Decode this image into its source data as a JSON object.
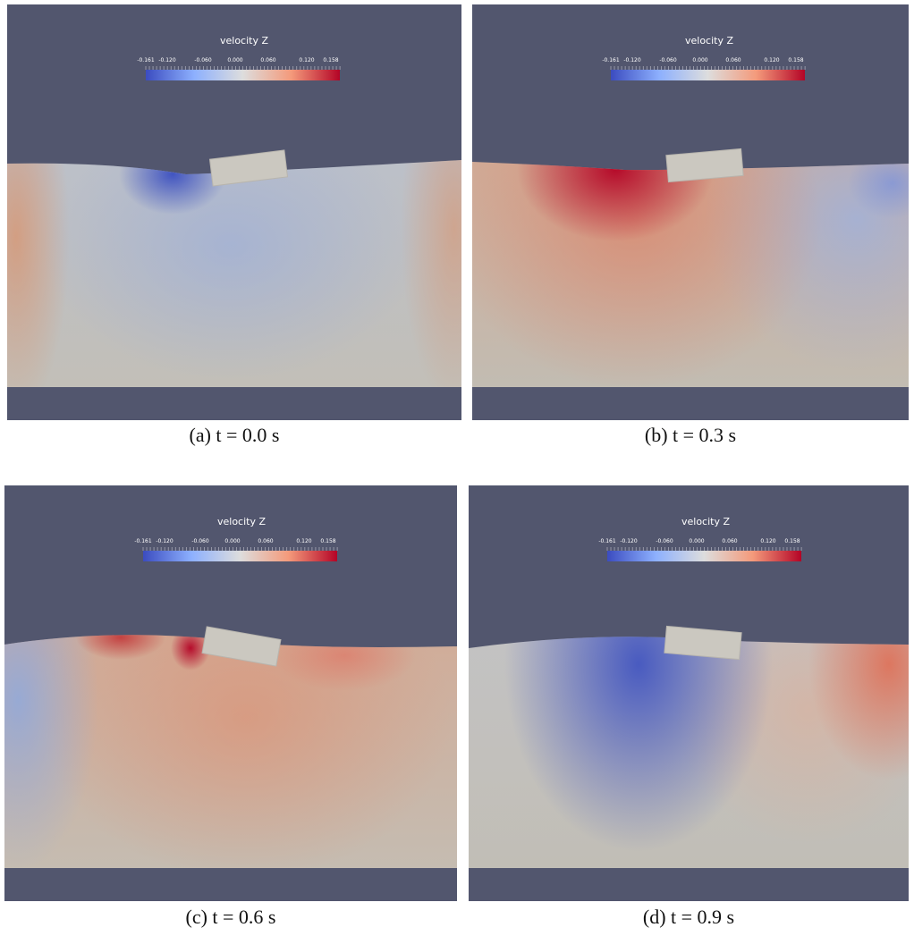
{
  "panels": [
    {
      "title": "velocity Z",
      "ticks": [
        "-0.161",
        "-0.120",
        "-0.060",
        "0.000",
        "0.060",
        "0.120",
        "0.158"
      ],
      "caption": "(a) t = 0.0 s"
    },
    {
      "title": "velocity Z",
      "ticks": [
        "-0.161",
        "-0.120",
        "-0.060",
        "0.000",
        "0.060",
        "0.120",
        "0.158"
      ],
      "caption": "(b) t = 0.3 s"
    },
    {
      "title": "velocity Z",
      "ticks": [
        "-0.161",
        "-0.120",
        "-0.060",
        "0.000",
        "0.060",
        "0.120",
        "0.158"
      ],
      "caption": "(c) t = 0.6 s"
    },
    {
      "title": "velocity Z",
      "ticks": [
        "-0.161",
        "-0.120",
        "-0.060",
        "0.000",
        "0.060",
        "0.120",
        "0.158"
      ],
      "caption": "(d) t = 0.9 s"
    }
  ]
}
